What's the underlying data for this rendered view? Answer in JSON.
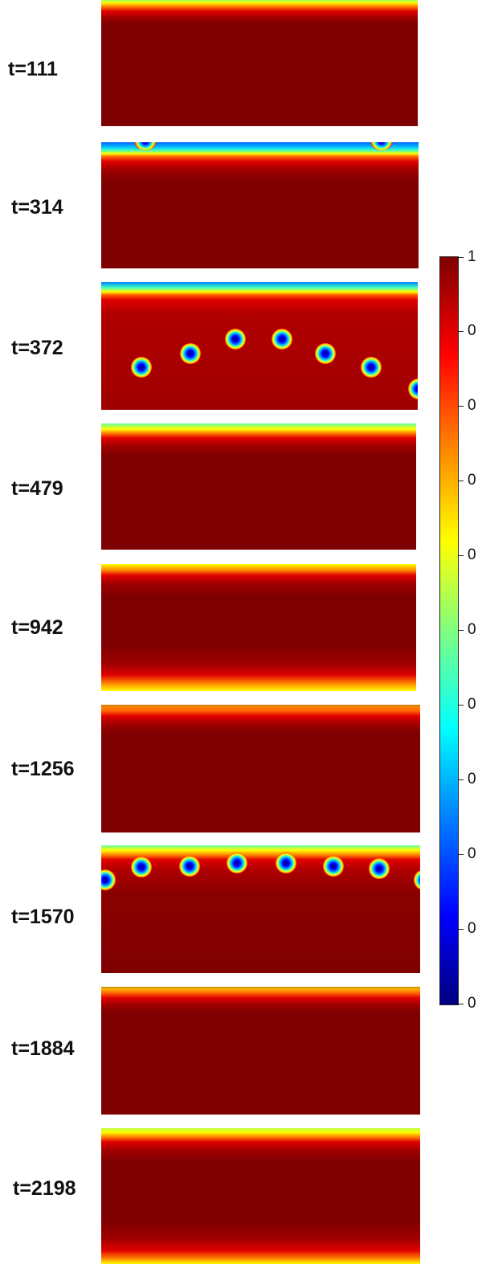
{
  "panels": [
    {
      "label": "t=111"
    },
    {
      "label": "t=314"
    },
    {
      "label": "t=372"
    },
    {
      "label": "t=479"
    },
    {
      "label": "t=942"
    },
    {
      "label": "t=1256"
    },
    {
      "label": "t=1570"
    },
    {
      "label": "t=1884"
    },
    {
      "label": "t=2198"
    }
  ],
  "colorbar": {
    "tick_labels": [
      "1",
      "0",
      "0",
      "0",
      "0",
      "0",
      "0",
      "0",
      "0",
      "0",
      "0"
    ],
    "colormap": [
      "#00007f",
      "#0000ff",
      "#0080ff",
      "#00ffff",
      "#80ff80",
      "#ffff00",
      "#ff8000",
      "#ff0000",
      "#7f0000"
    ]
  }
}
